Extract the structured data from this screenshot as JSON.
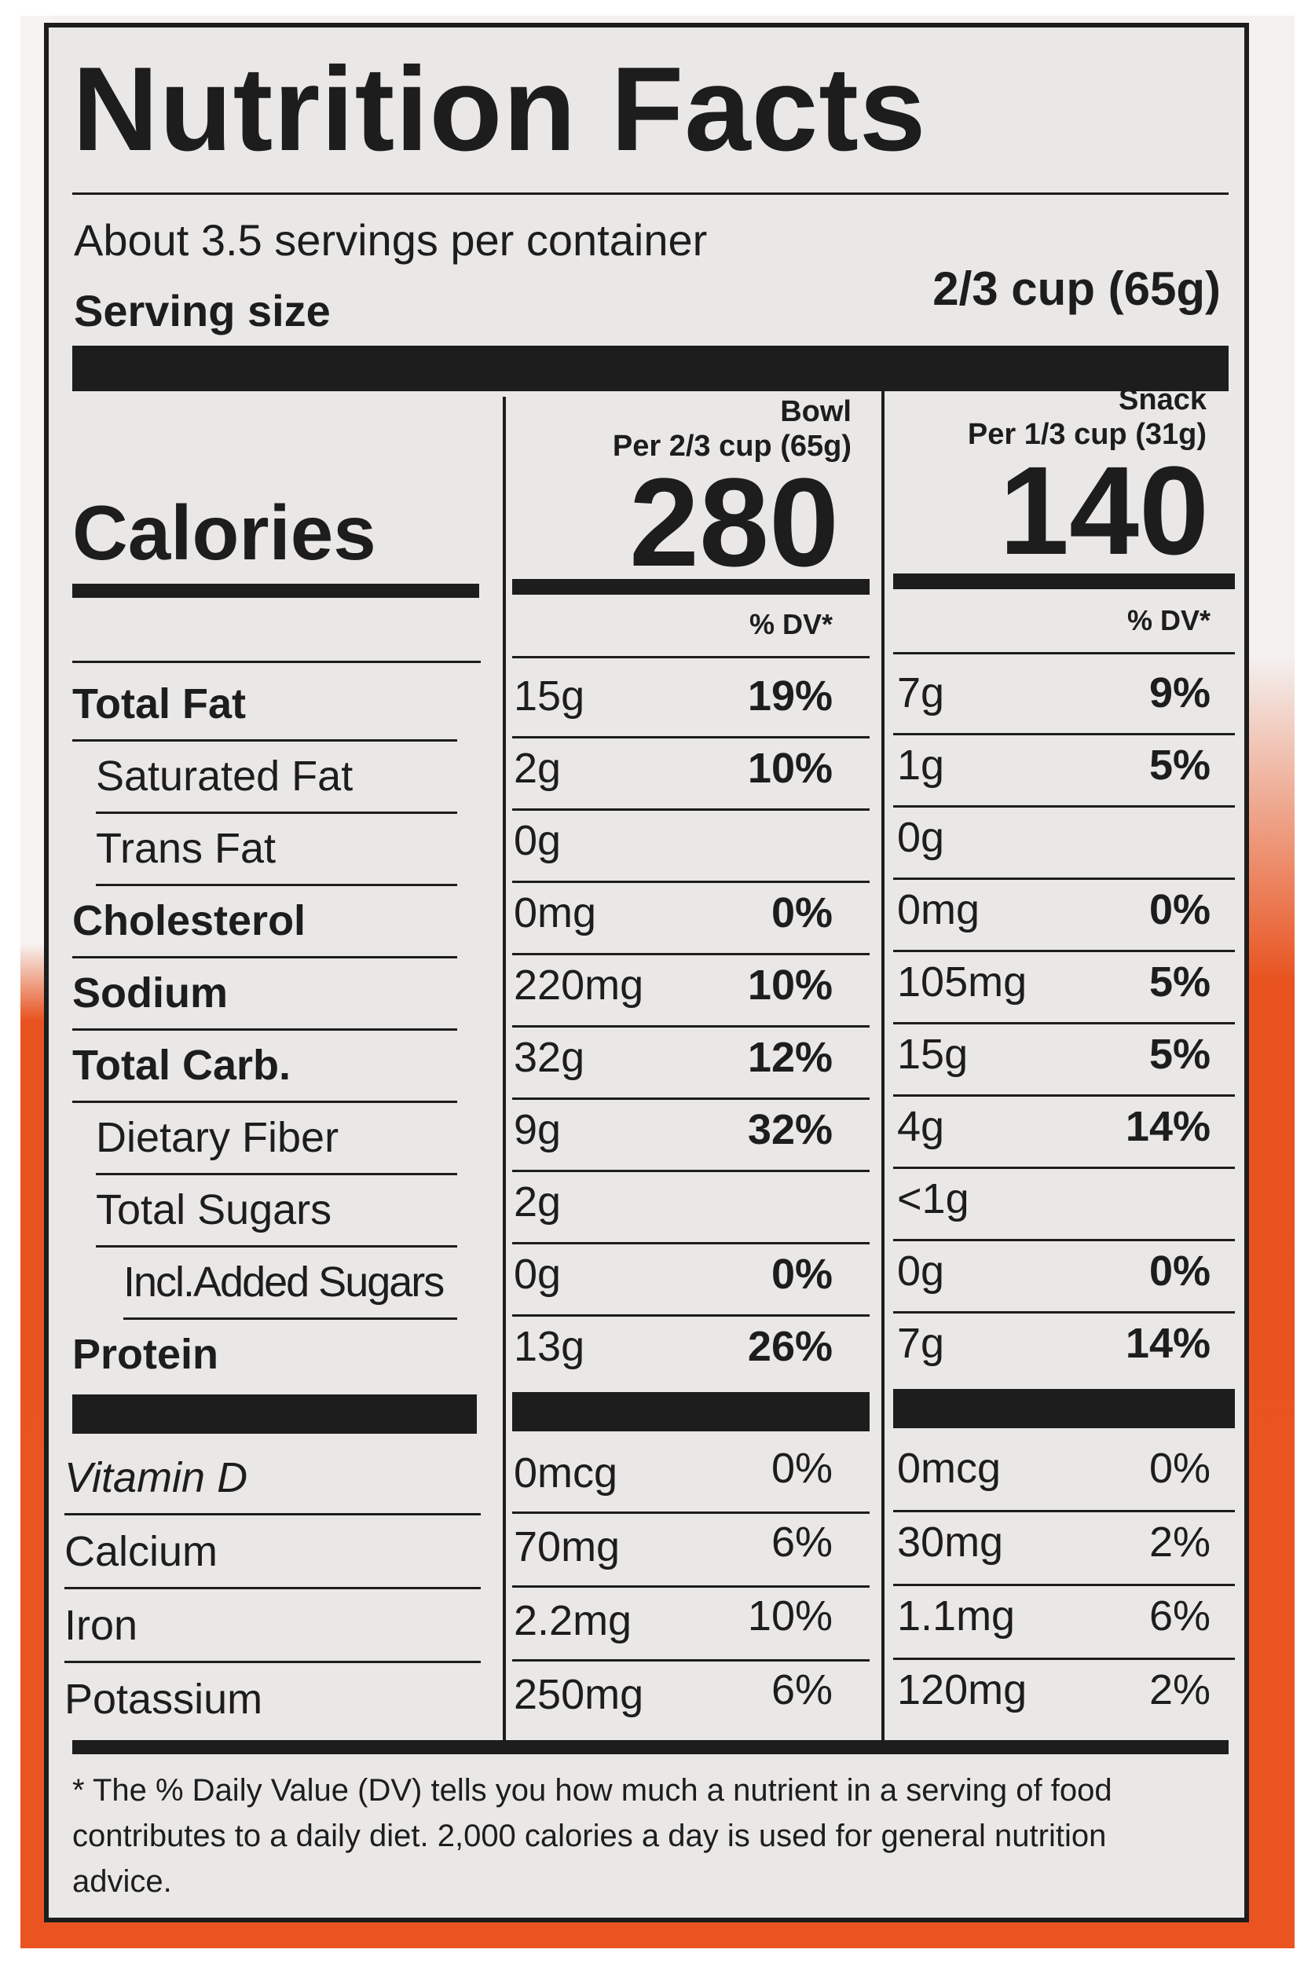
{
  "title": "Nutrition Facts",
  "servings_per_container": "About 3.5 servings per container",
  "serving_size_label": "Serving size",
  "serving_size_value": "2/3 cup (65g)",
  "calories_label": "Calories",
  "columns": [
    {
      "name": "Bowl",
      "per": "Per 2/3 cup (65g)",
      "calories": "280",
      "dv_header": "% DV*"
    },
    {
      "name": "Snack",
      "per": "Per 1/3 cup (31g)",
      "calories": "140",
      "dv_header": "% DV*"
    }
  ],
  "nutrients": [
    {
      "label": "Total Fat",
      "bold": true,
      "indent": 0,
      "bowl": "15g",
      "bowl_dv": "19%",
      "snack": "7g",
      "snack_dv": "9%"
    },
    {
      "label": "Saturated Fat",
      "bold": false,
      "indent": 1,
      "bowl": "2g",
      "bowl_dv": "10%",
      "snack": "1g",
      "snack_dv": "5%"
    },
    {
      "label": "Trans Fat",
      "bold": false,
      "indent": 1,
      "italic_prefix": "Trans",
      "bowl": "0g",
      "bowl_dv": "",
      "snack": "0g",
      "snack_dv": ""
    },
    {
      "label": "Cholesterol",
      "bold": true,
      "indent": 0,
      "bowl": "0mg",
      "bowl_dv": "0%",
      "snack": "0mg",
      "snack_dv": "0%"
    },
    {
      "label": "Sodium",
      "bold": true,
      "indent": 0,
      "bowl": "220mg",
      "bowl_dv": "10%",
      "snack": "105mg",
      "snack_dv": "5%"
    },
    {
      "label": "Total Carb.",
      "bold": true,
      "indent": 0,
      "bowl": "32g",
      "bowl_dv": "12%",
      "snack": "15g",
      "snack_dv": "5%"
    },
    {
      "label": "Dietary Fiber",
      "bold": false,
      "indent": 1,
      "bowl": "9g",
      "bowl_dv": "32%",
      "snack": "4g",
      "snack_dv": "14%"
    },
    {
      "label": "Total Sugars",
      "bold": false,
      "indent": 1,
      "bowl": "2g",
      "bowl_dv": "",
      "snack": "<1g",
      "snack_dv": ""
    },
    {
      "label": "Incl.Added Sugars",
      "bold": false,
      "indent": 2,
      "bowl": "0g",
      "bowl_dv": "0%",
      "snack": "0g",
      "snack_dv": "0%"
    },
    {
      "label": "Protein",
      "bold": true,
      "indent": 0,
      "bowl": "13g",
      "bowl_dv": "26%",
      "snack": "7g",
      "snack_dv": "14%"
    }
  ],
  "vitamins": [
    {
      "label": "Vitamin D",
      "bowl": "0mcg",
      "bowl_dv": "0%",
      "snack": "0mcg",
      "snack_dv": "0%"
    },
    {
      "label": "Calcium",
      "bowl": "70mg",
      "bowl_dv": "6%",
      "snack": "30mg",
      "snack_dv": "2%"
    },
    {
      "label": "Iron",
      "bowl": "2.2mg",
      "bowl_dv": "10%",
      "snack": "1.1mg",
      "snack_dv": "6%"
    },
    {
      "label": "Potassium",
      "bowl": "250mg",
      "bowl_dv": "6%",
      "snack": "120mg",
      "snack_dv": "2%"
    }
  ],
  "footnote": "* The % Daily Value (DV) tells you how much a nutrient in a serving of food contributes to a daily diet. 2,000 calories a day is used for general nutrition advice.",
  "colors": {
    "background_orange": "#ea5420",
    "panel": "#e9e8e6",
    "ink": "#1d1d1d"
  }
}
